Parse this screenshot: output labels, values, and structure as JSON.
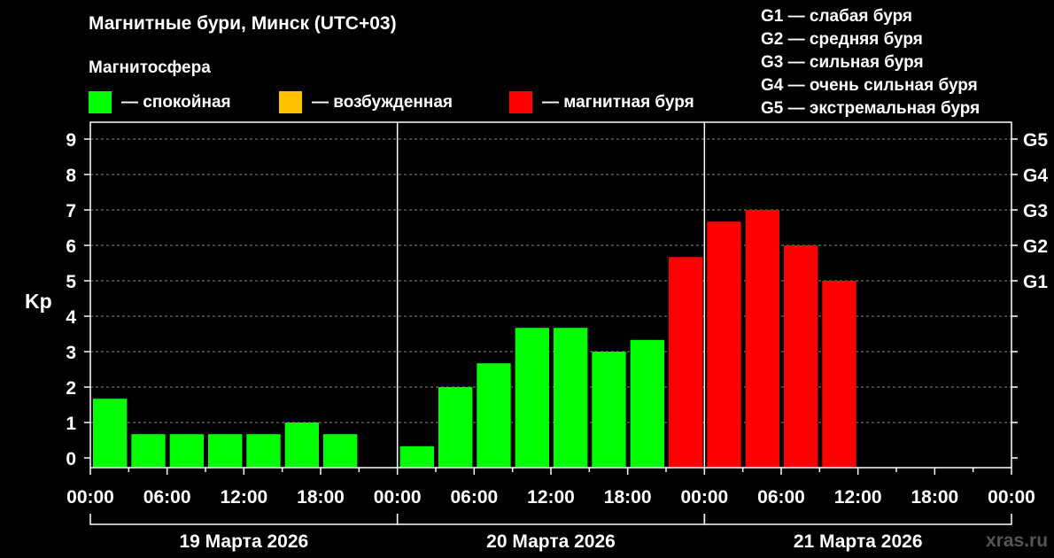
{
  "watermark": "xras.ru",
  "chart_data": {
    "type": "bar",
    "title": "Магнитные бури, Минск (UTC+03)",
    "ylabel": "Kp",
    "ylim": [
      0,
      9
    ],
    "yticks": [
      "0",
      "1",
      "2",
      "3",
      "4",
      "5",
      "6",
      "7",
      "8",
      "9"
    ],
    "grid": true,
    "legend": {
      "title": "Магнитосфера",
      "items": [
        {
          "label": "— спокойная",
          "color": "#00ff00"
        },
        {
          "label": "— возбужденная",
          "color": "#ffc000"
        },
        {
          "label": "— магнитная буря",
          "color": "#ff0000"
        }
      ]
    },
    "g_legend": [
      "G1 — слабая буря",
      "G2 — средняя буря",
      "G3 — сильная буря",
      "G4 — очень сильная буря",
      "G5 — экстремальная буря"
    ],
    "g_axis": [
      {
        "label": "G1",
        "kp": 5
      },
      {
        "label": "G2",
        "kp": 6
      },
      {
        "label": "G3",
        "kp": 7
      },
      {
        "label": "G4",
        "kp": 8
      },
      {
        "label": "G5",
        "kp": 9
      }
    ],
    "xticks": [
      "00:00",
      "06:00",
      "12:00",
      "18:00",
      "00:00",
      "06:00",
      "12:00",
      "18:00",
      "00:00",
      "06:00",
      "12:00",
      "18:00",
      "00:00"
    ],
    "days": [
      "19 Марта 2026",
      "20 Марта 2026",
      "21 Марта 2026"
    ],
    "colors": {
      "calm": "#00ff00",
      "active": "#ffc000",
      "storm": "#ff0000"
    },
    "values": [
      1.67,
      0.67,
      0.67,
      0.67,
      0.67,
      1.0,
      0.67,
      null,
      0.33,
      2.0,
      2.67,
      3.67,
      3.67,
      3.0,
      3.33,
      5.67,
      6.67,
      7.0,
      6.0,
      5.0,
      null,
      null,
      null,
      null
    ]
  }
}
